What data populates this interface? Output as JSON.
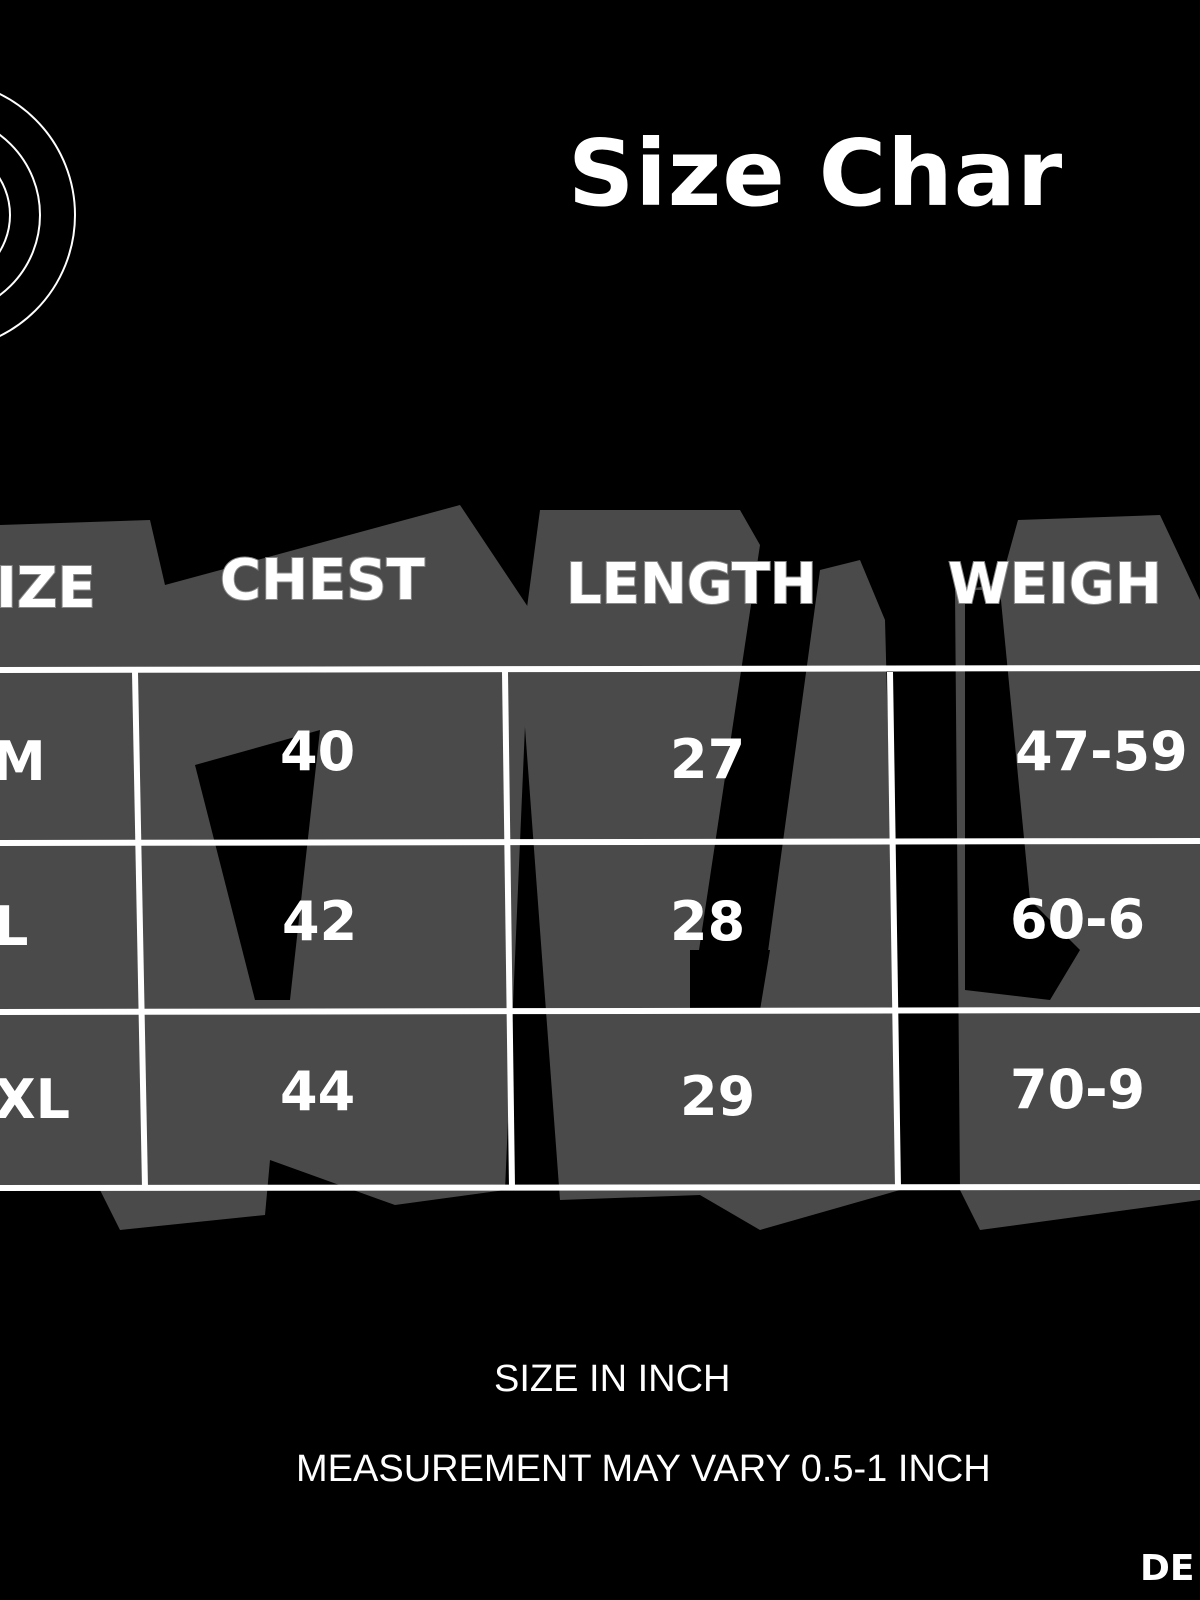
{
  "title": "Size Char",
  "table": {
    "headers": [
      "IZE",
      "CHEST",
      "LENGTH",
      "WEIGH"
    ],
    "rows": [
      [
        "M",
        "40",
        "27",
        "47-59"
      ],
      [
        "L",
        "42",
        "28",
        "60-6"
      ],
      [
        "XL",
        "44",
        "29",
        "70-9"
      ]
    ]
  },
  "notes": [
    "SIZE IN INCH",
    "MEASUREMENT MAY VARY 0.5-1 INCH"
  ],
  "brand_partial": "DE",
  "colors": {
    "background": "#000000",
    "watermark": "#4a4a4a",
    "text": "#ffffff"
  }
}
